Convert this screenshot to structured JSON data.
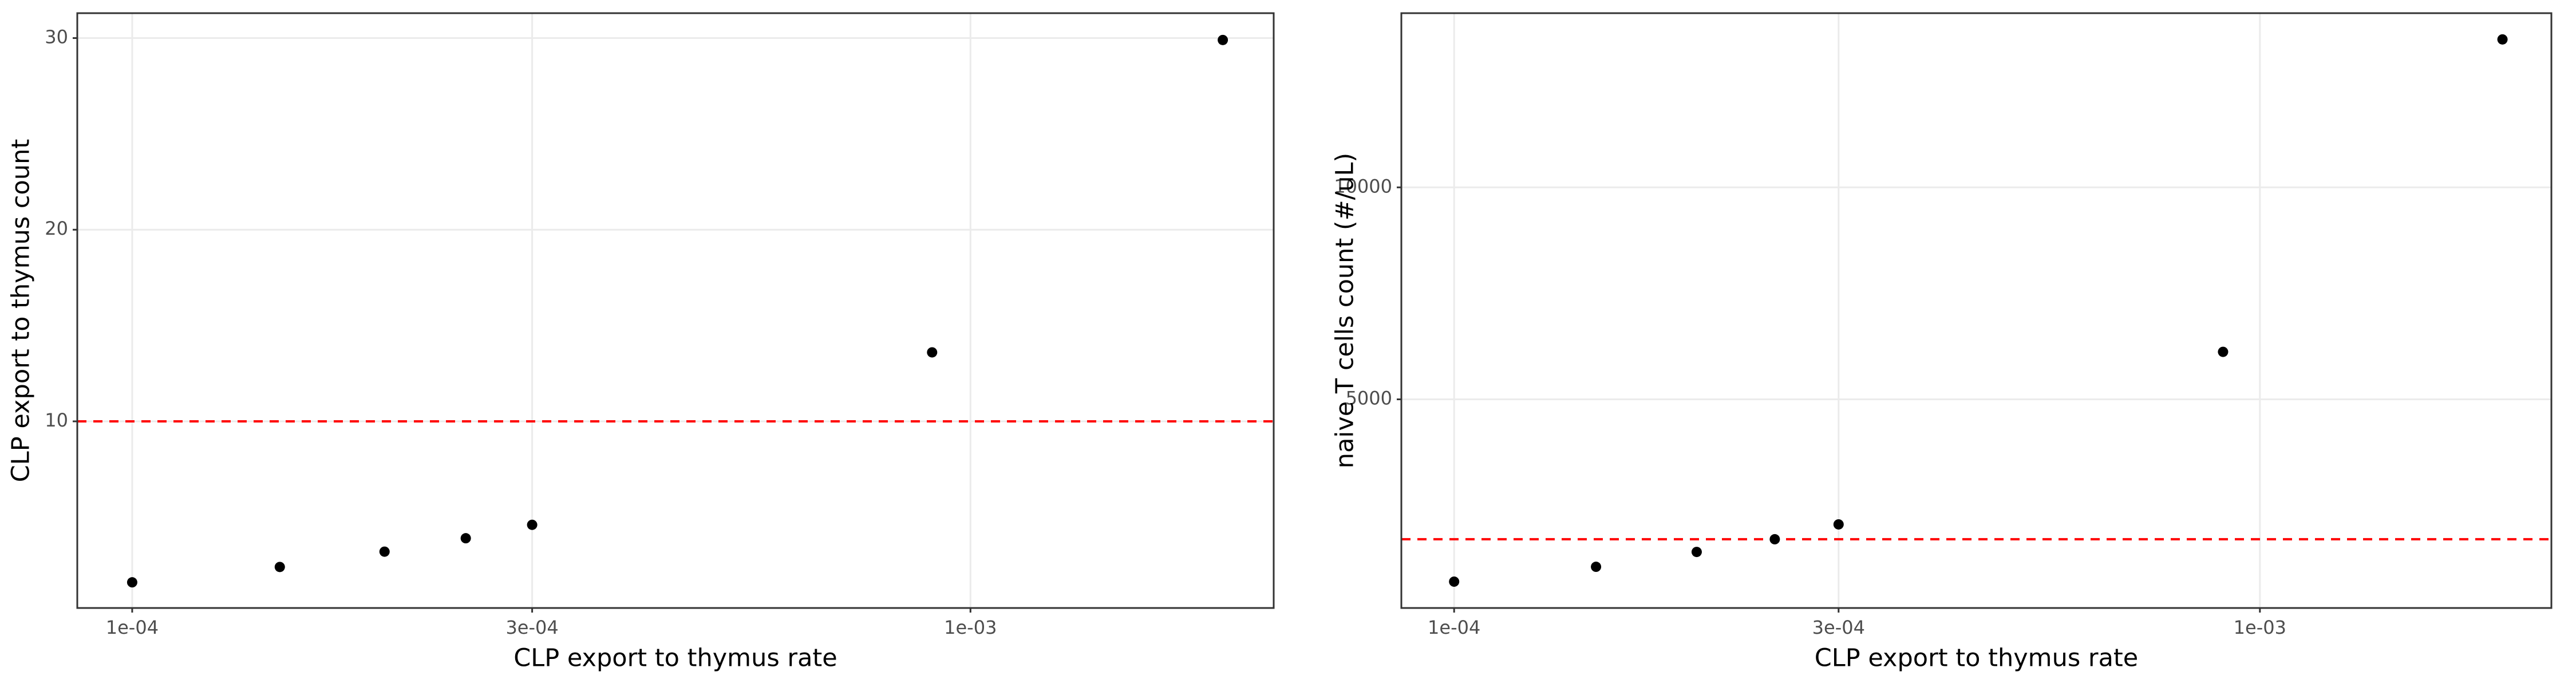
{
  "chart_data": [
    {
      "type": "scatter",
      "xlabel": "CLP export to thymus rate",
      "ylabel": "CLP export to thymus count",
      "x": [
        0.0001,
        0.00015,
        0.0002,
        0.00025,
        0.0003,
        0.0009,
        0.002
      ],
      "values": [
        1.6,
        2.4,
        3.2,
        3.9,
        4.6,
        13.6,
        29.9
      ],
      "color": "#000000",
      "xscale": "log",
      "xlim": [
        8.6e-05,
        0.0023
      ],
      "ylim": [
        0.26,
        31.3
      ],
      "xticks": [
        {
          "value": 0.0001,
          "label": "1e-04"
        },
        {
          "value": 0.0003,
          "label": "3e-04"
        },
        {
          "value": 0.001,
          "label": "1e-03"
        }
      ],
      "yticks": [
        10,
        20,
        30
      ],
      "grid": true,
      "reference_line": {
        "value": 10,
        "color": "#ff0000",
        "style": "dashed"
      }
    },
    {
      "type": "scatter",
      "xlabel": "CLP export to thymus rate",
      "ylabel": "naive T cells count (#/uL)",
      "x": [
        0.0001,
        0.00015,
        0.0002,
        0.00025,
        0.0003,
        0.0009,
        0.002
      ],
      "values": [
        700,
        1050,
        1400,
        1700,
        2050,
        6120,
        13490
      ],
      "color": "#000000",
      "xscale": "log",
      "xlim": [
        8.6e-05,
        0.0023
      ],
      "ylim": [
        78,
        14109
      ],
      "xticks": [
        {
          "value": 0.0001,
          "label": "1e-04"
        },
        {
          "value": 0.0003,
          "label": "3e-04"
        },
        {
          "value": 0.001,
          "label": "1e-03"
        }
      ],
      "yticks": [
        5000,
        10000
      ],
      "grid": true,
      "reference_line": {
        "value": 1700,
        "color": "#ff0000",
        "style": "dashed"
      }
    }
  ]
}
